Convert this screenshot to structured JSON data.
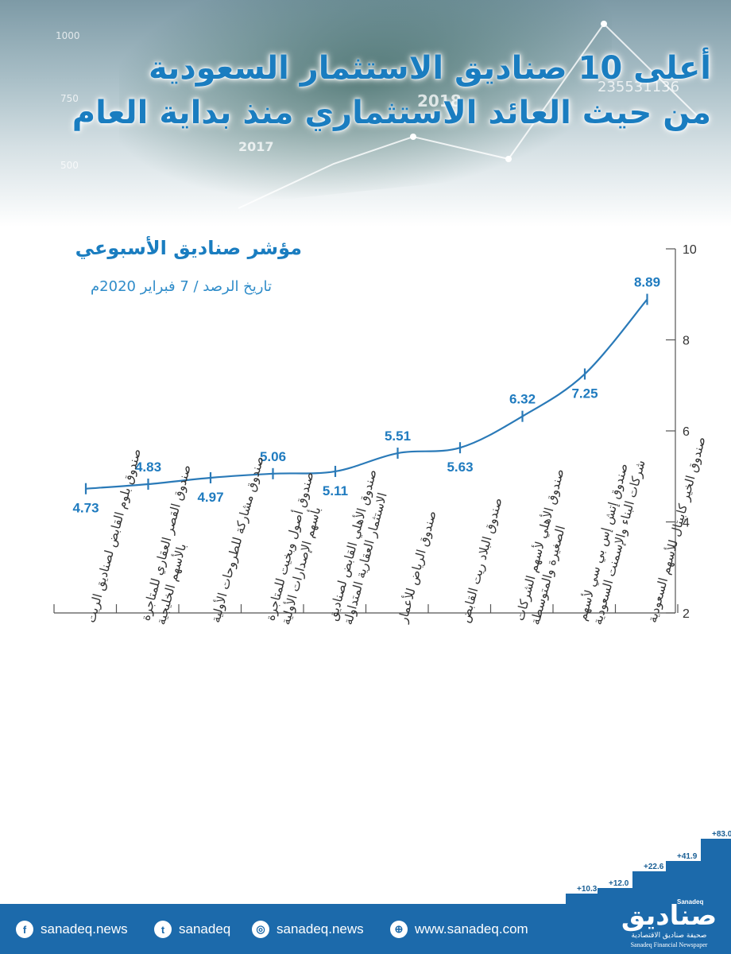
{
  "header": {
    "title_line1": "أعلى 10 صناديق الاستثمار السعودية",
    "title_line2": "من حيث العائد الاستثماري منذ بداية العام",
    "background_numbers": [
      "1000",
      "750",
      "500",
      "2018",
      "2017",
      "235531136"
    ]
  },
  "chart_data": {
    "type": "line",
    "title": "مؤشر صناديق الأسبوعي",
    "subtitle": "تاريخ الرصد / 7 فبراير 2020م",
    "categories": [
      "صندوق بلوم القابض لصناديق الريت",
      "صندوق القصر العقاري للمتاجرة بالأسهم الخليجية",
      "صندوق مشاركة للطروحات الأولية",
      "صندوق أصول وبخيت للمتاجرة بأسهم الإصدارات الأولية",
      "صندوق الأهلي القابض لصناديق الاستثمار العقارية المتداولة",
      "صندوق الرياض للأعمار",
      "صندوق البلاد ريت القابض",
      "صندوق الأهلي لأسهم الشركات الصغيرة والمتوسطة",
      "صندوق إتش إس بي سي لأسهم شركات البناء والإسمنت السعودية",
      "صندوق الخير كابيتال للأسهم السعودية"
    ],
    "category_lines": [
      [
        "صندوق بلوم القابض لصناديق الريت"
      ],
      [
        "صندوق القصر العقاري للمتاجرة",
        "بالأسهم الخليجية"
      ],
      [
        "صندوق مشاركة للطروحات الأولية"
      ],
      [
        "صندوق أصول وبخيت للمتاجرة",
        "بأسهم الإصدارات الأولية"
      ],
      [
        "صندوق الأهلي القابض لصناديق",
        "الاستثمار العقارية المتداولة"
      ],
      [
        "صندوق الرياض للأعمار"
      ],
      [
        "صندوق البلاد ريت القابض"
      ],
      [
        "صندوق الأهلي لأسهم الشركات",
        "الصغيرة والمتوسطة"
      ],
      [
        "صندوق إتش إس بي سي لأسهم",
        "شركات البناء والإسمنت السعودية"
      ],
      [
        "صندوق الخير كابيتال للأسهم السعودية"
      ]
    ],
    "values": [
      4.73,
      4.83,
      4.97,
      5.06,
      5.11,
      5.51,
      5.63,
      6.32,
      7.25,
      8.89
    ],
    "value_labels": [
      "4.73",
      "4.83",
      "4.97",
      "5.06",
      "5.11",
      "5.51",
      "5.63",
      "6.32",
      "7.25",
      "8.89"
    ],
    "label_side": [
      "below",
      "above",
      "below",
      "above",
      "below",
      "above",
      "below",
      "above",
      "below",
      "above"
    ],
    "ylim": [
      2,
      10
    ],
    "yticks": [
      "2",
      "4",
      "6",
      "8",
      "10"
    ],
    "y_axis_side": "right",
    "grid": false,
    "legend": "none",
    "line_color": "#2a7ab8",
    "label_color": "#1f7bbf"
  },
  "growth_steps": [
    "+10.3",
    "+12.0",
    "+22.6",
    "+41.9",
    "+83.0"
  ],
  "footer": {
    "facebook": "sanadeq.news",
    "twitter": "sanadeq",
    "instagram": "sanadeq.news",
    "website": "www.sanadeq.com"
  },
  "logo": {
    "latin": "Sanadeq",
    "name": "صناديق",
    "tagline_ar": "صحيفة صناديق الاقتصادية",
    "tagline_en": "Sanadeq Financial Newspaper"
  },
  "colors": {
    "title": "#1a7dc0",
    "footer_bg": "#1c6aab",
    "steps": "#1c6aab"
  }
}
